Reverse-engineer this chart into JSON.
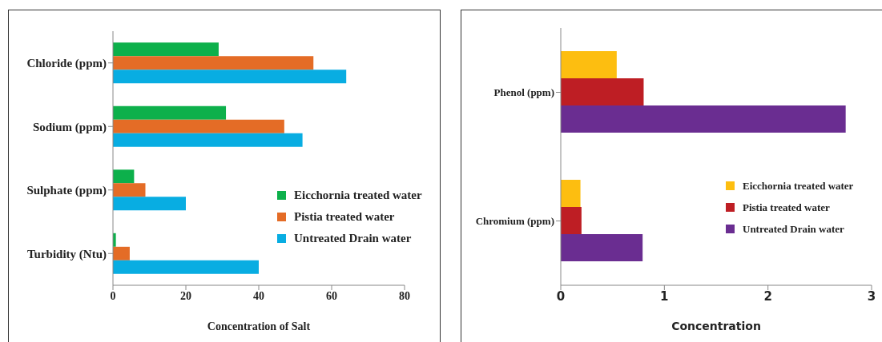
{
  "chart_data": [
    {
      "type": "bar",
      "orientation": "horizontal",
      "xlabel": "Concentration of Salt",
      "categories": [
        "Chloride (ppm)",
        "Sodium (ppm)",
        "Sulphate (ppm)",
        "Turbidity (Ntu)"
      ],
      "series": [
        {
          "name": "Eicchornia treated water",
          "color": "#0db04b",
          "values": [
            29,
            31,
            5.8,
            0.8
          ]
        },
        {
          "name": "Pistia treated water",
          "color": "#e46c26",
          "values": [
            55,
            47,
            8.9,
            4.6
          ]
        },
        {
          "name": "Untreated Drain water",
          "color": "#08ade2",
          "values": [
            64,
            52,
            20,
            40
          ]
        }
      ],
      "xlim": [
        0,
        80
      ],
      "xticks": [
        0,
        20,
        40,
        60,
        80
      ],
      "legend": "right"
    },
    {
      "type": "bar",
      "orientation": "horizontal",
      "xlabel": "Concentration",
      "categories": [
        "Phenol (ppm)",
        "Chromium (ppm)"
      ],
      "series": [
        {
          "name": "Eicchornia treated water",
          "color": "#fdbe10",
          "values": [
            0.54,
            0.19
          ]
        },
        {
          "name": "Pistia treated water",
          "color": "#be1e24",
          "values": [
            0.8,
            0.2
          ]
        },
        {
          "name": "Untreated Drain water",
          "color": "#6a2d91",
          "values": [
            2.75,
            0.79
          ]
        }
      ],
      "xlim": [
        0,
        3
      ],
      "xticks": [
        0,
        1,
        2,
        3
      ],
      "legend": "right"
    }
  ]
}
